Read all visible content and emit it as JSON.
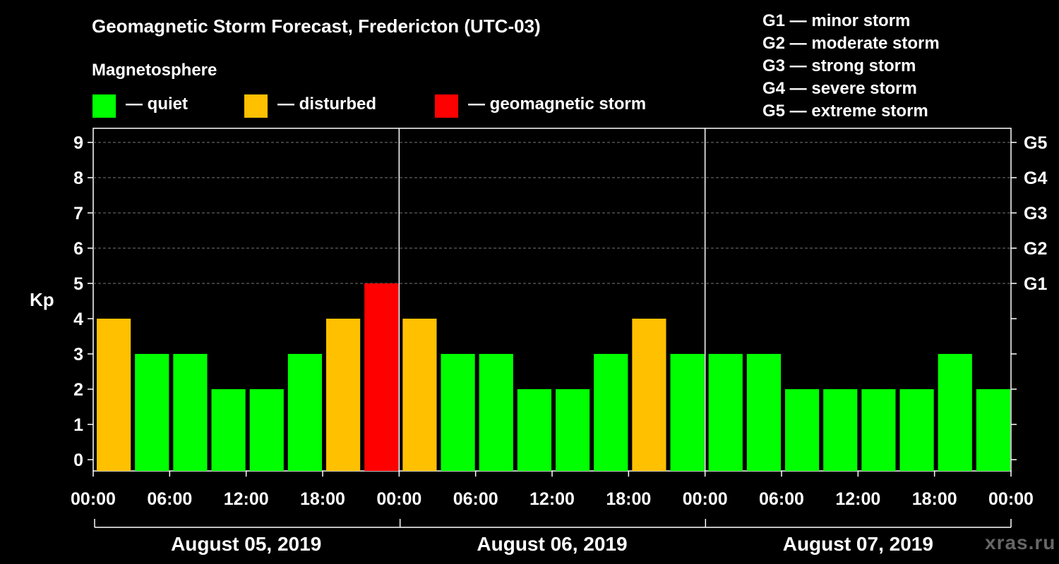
{
  "header": {
    "title": "Geomagnetic Storm Forecast, Fredericton (UTC-03)",
    "subtitle": "Magnetosphere"
  },
  "legend": [
    {
      "label": "— quiet",
      "color": "#00ff00"
    },
    {
      "label": "— disturbed",
      "color": "#ffc000"
    },
    {
      "label": "— geomagnetic storm",
      "color": "#ff0000"
    }
  ],
  "storm_scale": [
    "G1 — minor storm",
    "G2 — moderate storm",
    "G3 — strong storm",
    "G4 — severe storm",
    "G5 — extreme storm"
  ],
  "watermark": "xras.ru",
  "chart_data": {
    "type": "bar",
    "title": "Geomagnetic Storm Forecast, Fredericton (UTC-03)",
    "ylabel": "Kp",
    "ylim": [
      0,
      9
    ],
    "yticks": [
      "0",
      "1",
      "2",
      "3",
      "4",
      "5",
      "6",
      "7",
      "8",
      "9"
    ],
    "right_ticks": [
      {
        "kp": 5,
        "label": "G1"
      },
      {
        "kp": 6,
        "label": "G2"
      },
      {
        "kp": 7,
        "label": "G3"
      },
      {
        "kp": 8,
        "label": "G4"
      },
      {
        "kp": 9,
        "label": "G5"
      }
    ],
    "xtick_labels": [
      "00:00",
      "06:00",
      "12:00",
      "18:00",
      "00:00",
      "06:00",
      "12:00",
      "18:00",
      "00:00",
      "06:00",
      "12:00",
      "18:00",
      "00:00"
    ],
    "days": [
      "August 05, 2019",
      "August 06, 2019",
      "August 07, 2019"
    ],
    "interval_hours": 3,
    "values": [
      4,
      3,
      3,
      2,
      2,
      3,
      4,
      5,
      4,
      3,
      3,
      2,
      2,
      3,
      4,
      3,
      3,
      3,
      2,
      2,
      2,
      2,
      3,
      2
    ],
    "colors": {
      "quiet": "#00ff00",
      "disturbed": "#ffc000",
      "storm": "#ff0000"
    },
    "grid": true
  }
}
